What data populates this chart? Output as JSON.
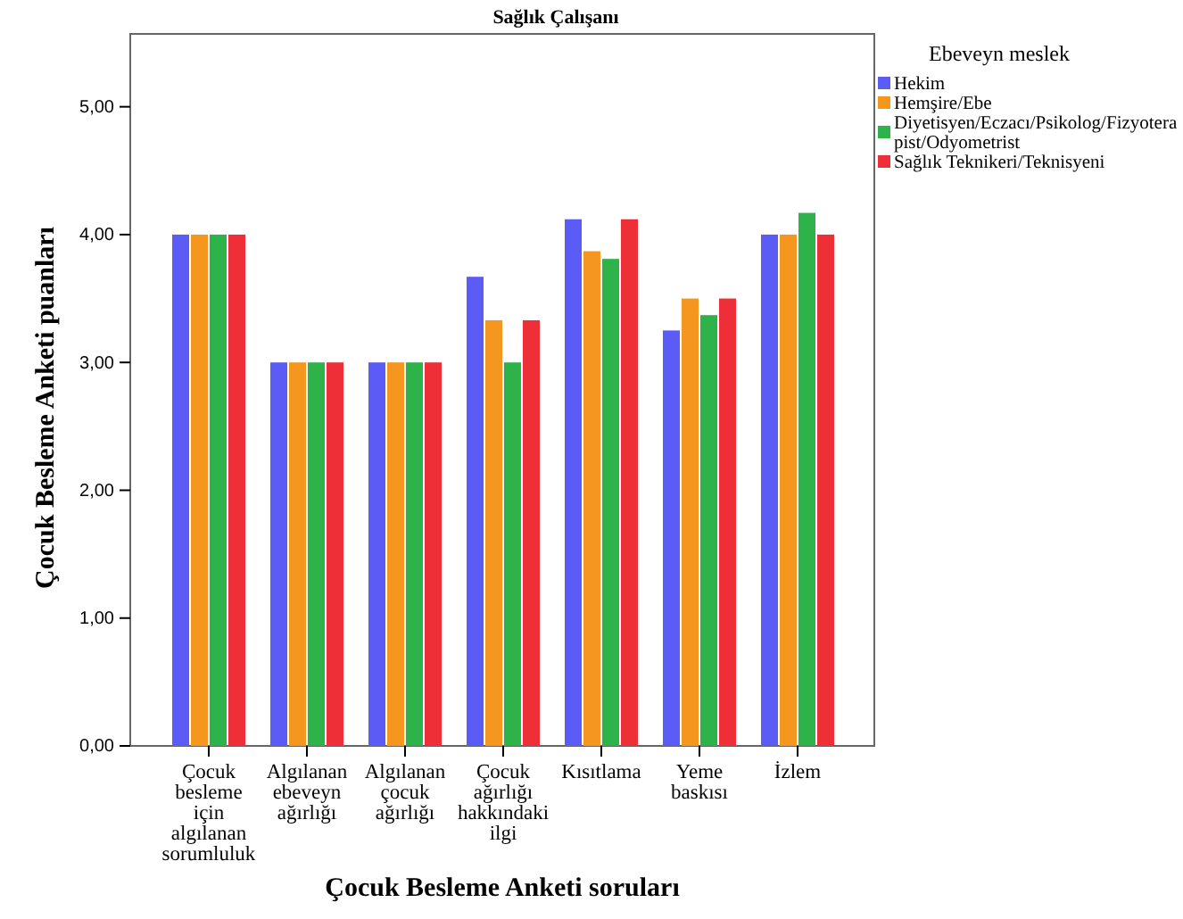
{
  "chart_data": {
    "type": "bar",
    "title": "Sağlık Çalışanı",
    "xlabel": "Çocuk Besleme Anketi soruları",
    "ylabel": "Çocuk Besleme Anketi puanları",
    "legend_title": "Ebeveyn meslek",
    "legend": "right",
    "categories": [
      "Çocuk besleme için algılanan sorumluluk",
      "Algılanan ebeveyn ağırlığı",
      "Algılanan çocuk ağırlığı",
      "Çocuk ağırlığı hakkındaki ilgi",
      "Kısıtlama",
      "Yeme baskısı",
      "İzlem"
    ],
    "series": [
      {
        "name": "Hekim",
        "color": "#5b5bf5",
        "values": [
          4,
          3,
          3,
          3.67,
          4.12,
          3.25,
          4
        ]
      },
      {
        "name": "Hemşire/Ebe",
        "color": "#f5961e",
        "values": [
          4,
          3,
          3,
          3.33,
          3.87,
          3.5,
          4
        ]
      },
      {
        "name": "Diyetisyen/Eczacı/Psikolog/Fizyoterapist/Odyometrist",
        "color": "#2eb34a",
        "values": [
          4,
          3,
          3,
          3,
          3.81,
          3.37,
          4.17
        ]
      },
      {
        "name": "Sağlık Teknikeri/Teknisyeni",
        "color": "#ee2f38",
        "values": [
          4,
          3,
          3,
          3.33,
          4.12,
          3.5,
          4
        ]
      }
    ],
    "ylim": [
      0,
      5.57
    ],
    "yticks": [
      {
        "value": 0,
        "label": "0,00"
      },
      {
        "value": 1,
        "label": "1,00"
      },
      {
        "value": 2,
        "label": "2,00"
      },
      {
        "value": 3,
        "label": "3,00"
      },
      {
        "value": 4,
        "label": "4,00"
      },
      {
        "value": 5,
        "label": "5,00"
      }
    ],
    "grid": false
  }
}
